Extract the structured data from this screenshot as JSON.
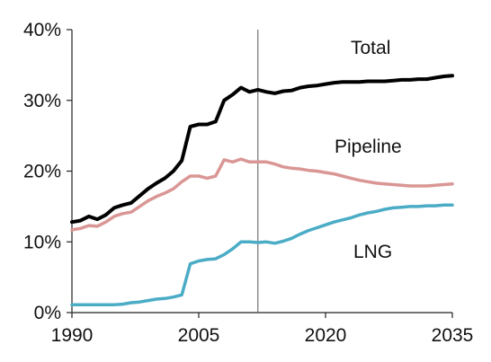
{
  "chart_data": {
    "type": "line",
    "title": "",
    "xlabel": "",
    "ylabel": "",
    "xlim": [
      1990,
      2035
    ],
    "ylim": [
      0,
      40
    ],
    "x_ticks": [
      1990,
      2005,
      2020,
      2035
    ],
    "y_ticks": [
      0,
      10,
      20,
      30,
      40
    ],
    "x_tick_labels": [
      "1990",
      "2005",
      "2020",
      "2035"
    ],
    "y_tick_labels": [
      "0%",
      "10%",
      "20%",
      "30%",
      "40%"
    ],
    "grid": false,
    "projection_divider_x": 2012,
    "series": [
      {
        "name": "Total",
        "color": "#000000",
        "x": [
          1990,
          1991,
          1992,
          1993,
          1994,
          1995,
          1996,
          1997,
          1998,
          1999,
          2000,
          2001,
          2002,
          2003,
          2004,
          2005,
          2006,
          2007,
          2008,
          2009,
          2010,
          2011,
          2012,
          2013,
          2014,
          2015,
          2016,
          2017,
          2018,
          2019,
          2020,
          2021,
          2022,
          2023,
          2024,
          2025,
          2026,
          2027,
          2028,
          2029,
          2030,
          2031,
          2032,
          2033,
          2034,
          2035
        ],
        "values": [
          12.8,
          13.0,
          13.6,
          13.2,
          13.8,
          14.8,
          15.2,
          15.5,
          16.5,
          17.5,
          18.3,
          19.0,
          20.0,
          21.5,
          26.3,
          26.6,
          26.6,
          27.0,
          30.0,
          30.8,
          31.8,
          31.2,
          31.5,
          31.2,
          31.0,
          31.3,
          31.4,
          31.8,
          32.0,
          32.1,
          32.3,
          32.5,
          32.6,
          32.6,
          32.6,
          32.7,
          32.7,
          32.7,
          32.8,
          32.9,
          32.9,
          33.0,
          33.0,
          33.2,
          33.4,
          33.5
        ]
      },
      {
        "name": "Pipeline",
        "color": "#d99694",
        "x": [
          1990,
          1991,
          1992,
          1993,
          1994,
          1995,
          1996,
          1997,
          1998,
          1999,
          2000,
          2001,
          2002,
          2003,
          2004,
          2005,
          2006,
          2007,
          2008,
          2009,
          2010,
          2011,
          2012,
          2013,
          2014,
          2015,
          2016,
          2017,
          2018,
          2019,
          2020,
          2021,
          2022,
          2023,
          2024,
          2025,
          2026,
          2027,
          2028,
          2029,
          2030,
          2031,
          2032,
          2033,
          2034,
          2035
        ],
        "values": [
          11.7,
          11.9,
          12.3,
          12.2,
          12.8,
          13.6,
          14.0,
          14.2,
          15.0,
          15.8,
          16.4,
          16.9,
          17.5,
          18.5,
          19.3,
          19.3,
          19.0,
          19.3,
          21.6,
          21.3,
          21.7,
          21.3,
          21.3,
          21.3,
          21.0,
          20.6,
          20.4,
          20.3,
          20.1,
          20.0,
          19.8,
          19.6,
          19.3,
          19.0,
          18.7,
          18.5,
          18.3,
          18.2,
          18.1,
          18.0,
          17.9,
          17.9,
          17.9,
          18.0,
          18.1,
          18.2
        ]
      },
      {
        "name": "LNG",
        "color": "#4bacc6",
        "x": [
          1990,
          1991,
          1992,
          1993,
          1994,
          1995,
          1996,
          1997,
          1998,
          1999,
          2000,
          2001,
          2002,
          2003,
          2004,
          2005,
          2006,
          2007,
          2008,
          2009,
          2010,
          2011,
          2012,
          2013,
          2014,
          2015,
          2016,
          2017,
          2018,
          2019,
          2020,
          2021,
          2022,
          2023,
          2024,
          2025,
          2026,
          2027,
          2028,
          2029,
          2030,
          2031,
          2032,
          2033,
          2034,
          2035
        ],
        "values": [
          1.1,
          1.1,
          1.1,
          1.1,
          1.1,
          1.1,
          1.2,
          1.4,
          1.5,
          1.7,
          1.9,
          2.0,
          2.2,
          2.5,
          6.9,
          7.3,
          7.5,
          7.6,
          8.2,
          9.0,
          10.0,
          10.0,
          9.9,
          10.0,
          9.8,
          10.1,
          10.5,
          11.1,
          11.6,
          12.0,
          12.4,
          12.8,
          13.1,
          13.4,
          13.8,
          14.1,
          14.3,
          14.6,
          14.8,
          14.9,
          15.0,
          15.0,
          15.1,
          15.1,
          15.2,
          15.2
        ]
      }
    ],
    "annotations": [
      {
        "text": "Total",
        "series": "Total"
      },
      {
        "text": "Pipeline",
        "series": "Pipeline"
      },
      {
        "text": "LNG",
        "series": "LNG"
      }
    ]
  }
}
